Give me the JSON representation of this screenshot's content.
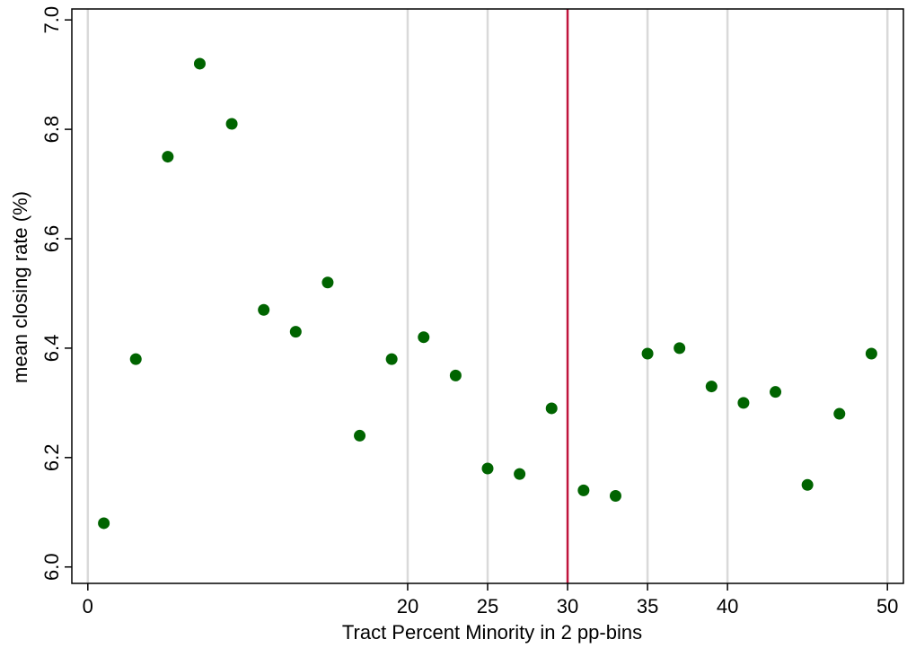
{
  "chart_data": {
    "type": "scatter",
    "xlabel": "Tract Percent Minority in 2 pp-bins",
    "ylabel": "mean  closing rate (%)",
    "xlim": [
      -1,
      51
    ],
    "ylim": [
      5.97,
      7.02
    ],
    "x_ticks": [
      0,
      20,
      25,
      30,
      35,
      40,
      50
    ],
    "y_ticks": [
      6.0,
      6.2,
      6.4,
      6.6,
      6.8,
      7.0
    ],
    "y_tick_labels": [
      "6.0",
      "6.2",
      "6.4",
      "6.6",
      "6.8",
      "7.0"
    ],
    "vertical_gridlines_at": [
      0,
      20,
      25,
      35,
      40,
      50
    ],
    "reference_line": {
      "x": 30,
      "color": "#c0143c"
    },
    "marker_color": "#006400",
    "gridline_color": "#d9d9d9",
    "points": [
      {
        "x": 1,
        "y": 6.08
      },
      {
        "x": 3,
        "y": 6.38
      },
      {
        "x": 5,
        "y": 6.75
      },
      {
        "x": 7,
        "y": 6.92
      },
      {
        "x": 9,
        "y": 6.81
      },
      {
        "x": 11,
        "y": 6.47
      },
      {
        "x": 13,
        "y": 6.43
      },
      {
        "x": 15,
        "y": 6.52
      },
      {
        "x": 17,
        "y": 6.24
      },
      {
        "x": 19,
        "y": 6.38
      },
      {
        "x": 21,
        "y": 6.42
      },
      {
        "x": 23,
        "y": 6.35
      },
      {
        "x": 25,
        "y": 6.18
      },
      {
        "x": 27,
        "y": 6.17
      },
      {
        "x": 29,
        "y": 6.29
      },
      {
        "x": 31,
        "y": 6.14
      },
      {
        "x": 33,
        "y": 6.13
      },
      {
        "x": 35,
        "y": 6.39
      },
      {
        "x": 37,
        "y": 6.4
      },
      {
        "x": 39,
        "y": 6.33
      },
      {
        "x": 41,
        "y": 6.3
      },
      {
        "x": 43,
        "y": 6.32
      },
      {
        "x": 45,
        "y": 6.15
      },
      {
        "x": 47,
        "y": 6.28
      },
      {
        "x": 49,
        "y": 6.39
      }
    ]
  }
}
